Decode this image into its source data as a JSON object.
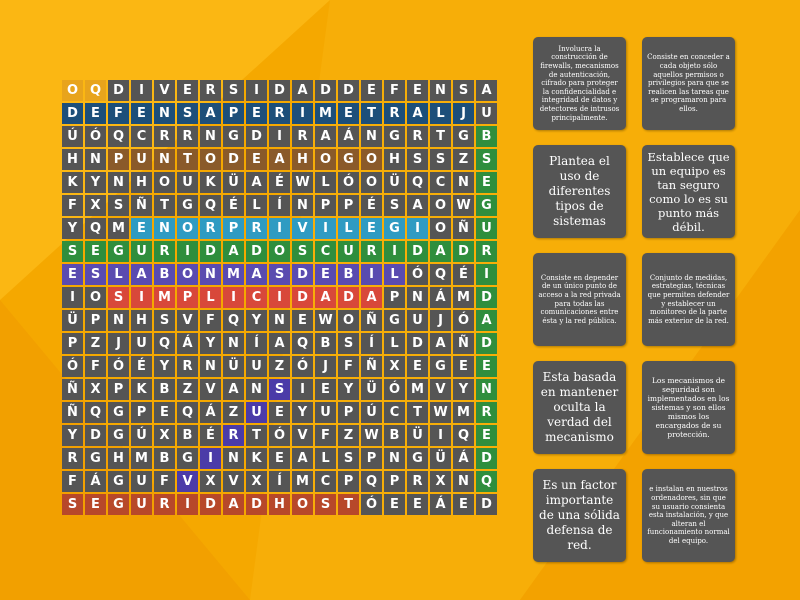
{
  "grid": {
    "rows": [
      "OQDIVERSIDADDEFENSA",
      "DEFENSAPERIMETRALJU",
      "ÚÓQCRRNGDIRAÁNGRTGB",
      "HNPUNTODEAHOGOHSSZS",
      "KYNHOUKÜAÉWLÓOÜQCNE",
      "FXSÑTGQÉLÍNPPÉSAOWG",
      "YQMENORPRIVILEGIOÑU",
      "SEGURIDADOSCURIDADR",
      "ESLABONMASDEBILÓQÉI",
      "IOSIMPLICIDADAPNÁMD",
      "ÜPNHSVFQYNEWOÑGUJÓA",
      "PZJUQÁYNÍAQBSÍLDAÑD",
      "ÓFÓÉYRNÜUZÓJFÑXEGEE",
      "ÑXPKBZVANSIEYÜÓMVYN",
      "ÑQGPEQÁZUEYUPÚCTWMR",
      "YDGÚXBÉRTÓVFZWBÜIQE",
      "RGHMBGINKEALSPNGÜÁD",
      "FÁGUFVXVXÍMCPQPRXNQ",
      "SEGURIDADHOSTÓEEÁED"
    ],
    "highlight_colors": {
      "O": "#e8a41c",
      "B": "#1d4f7a",
      "C": "#b7482a",
      "G": "#2f8e3d",
      "T": "#2f9bc2",
      "P": "#5a4bb0",
      "R": "#d8483a",
      "Y": "#8a5a2a",
      "V": "#4b3ba8"
    },
    "highlights": [
      "OODDDDDDDDDDDDDDDD.",
      "BBBBBBBBBBBBBBBBBB.",
      "..................G",
      "..YYYYYYYYYYYY....G",
      "..................G",
      "..................G",
      "...TTTTTTTTTTTTT..G",
      "GGGGGGGGGGGGGGGGGGG",
      "PPPPPPPPPPPPPPP...G",
      "..RRRRRRRRRRRR....G",
      "..................G",
      "..................G",
      "..................G",
      ".........V........G",
      "........V.........G",
      ".......V..........G",
      "......V...........G",
      ".....V............G",
      "CCCCCCCCCCCCC......"
    ]
  },
  "cards": [
    {
      "text": "Involucra la construcción de firewalls, mecanismos de autenticación, cifrado para proteger la confidencialidad e integridad de datos y detectores de intrusos principalmente."
    },
    {
      "text": "Consiste en conceder a cada objeto sólo aquellos permisos o privilegios para que se realicen las tareas que se programaron para ellos."
    },
    {
      "text": "Plantea el uso de diferentes tipos de sistemas"
    },
    {
      "text": "Establece que un equipo es tan seguro como lo es su punto más débil."
    },
    {
      "text": "Consiste en depender de un único punto de acceso a la red privada para todas las comunicaciones entre ésta y la red pública."
    },
    {
      "text": "Conjunto de medidas, estrategias, técnicas que permiten defender y establecer un monitoreo de la parte más exterior de la red."
    },
    {
      "text": "Esta basada en mantener oculta la verdad del mecanismo"
    },
    {
      "text": "Los mecanismos de seguridad son implementados en los sistemas y son ellos mismos los encargados de su protección."
    },
    {
      "text": "Es un factor importante de una sólida defensa de red."
    },
    {
      "text": "e instalan en nuestros ordenadores, sin que su usuario consienta esta instalación, y que alteran el funcionamiento normal del equipo."
    }
  ]
}
